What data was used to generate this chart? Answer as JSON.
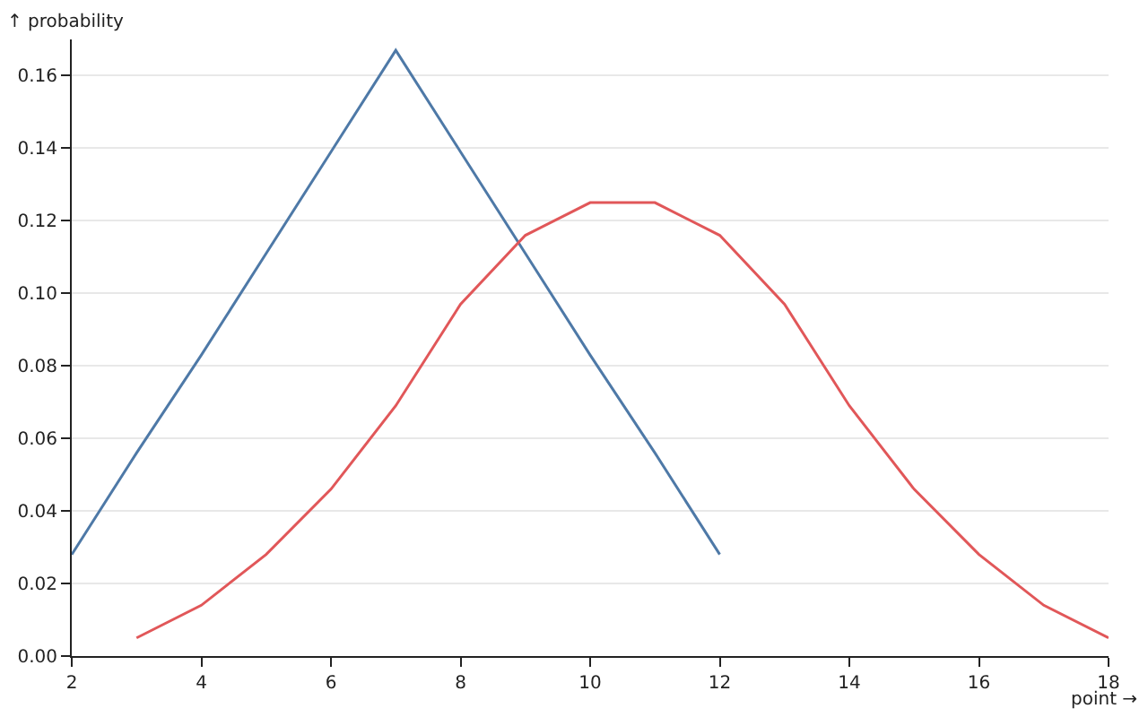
{
  "chart_data": {
    "type": "line",
    "xlabel": "point →",
    "ylabel": "↑ probability",
    "series": [
      {
        "color": "#4e79a7",
        "x": [
          2,
          3,
          4,
          5,
          6,
          7,
          8,
          9,
          10,
          11,
          12
        ],
        "values": [
          0.028,
          0.056,
          0.083,
          0.111,
          0.139,
          0.167,
          0.139,
          0.111,
          0.083,
          0.056,
          0.028
        ]
      },
      {
        "color": "#e15759",
        "x": [
          3,
          4,
          5,
          6,
          7,
          8,
          9,
          10,
          11,
          12,
          13,
          14,
          15,
          16,
          17,
          18
        ],
        "values": [
          0.005,
          0.014,
          0.028,
          0.046,
          0.069,
          0.097,
          0.116,
          0.125,
          0.125,
          0.116,
          0.097,
          0.069,
          0.046,
          0.028,
          0.014,
          0.005
        ]
      }
    ],
    "xlim": [
      2,
      18
    ],
    "xticks": [
      2,
      4,
      6,
      8,
      10,
      12,
      14,
      16,
      18
    ],
    "ylim": [
      0,
      0.17
    ],
    "yticks": [
      {
        "value": 0,
        "label": "0.00"
      },
      {
        "value": 0.02,
        "label": "0.02"
      },
      {
        "value": 0.04,
        "label": "0.04"
      },
      {
        "value": 0.06,
        "label": "0.06"
      },
      {
        "value": 0.08,
        "label": "0.08"
      },
      {
        "value": 0.1,
        "label": "0.10"
      },
      {
        "value": 0.12,
        "label": "0.12"
      },
      {
        "value": 0.14,
        "label": "0.14"
      },
      {
        "value": 0.16,
        "label": "0.16"
      }
    ],
    "grid": "y",
    "marker": "none",
    "line_style": "solid"
  }
}
